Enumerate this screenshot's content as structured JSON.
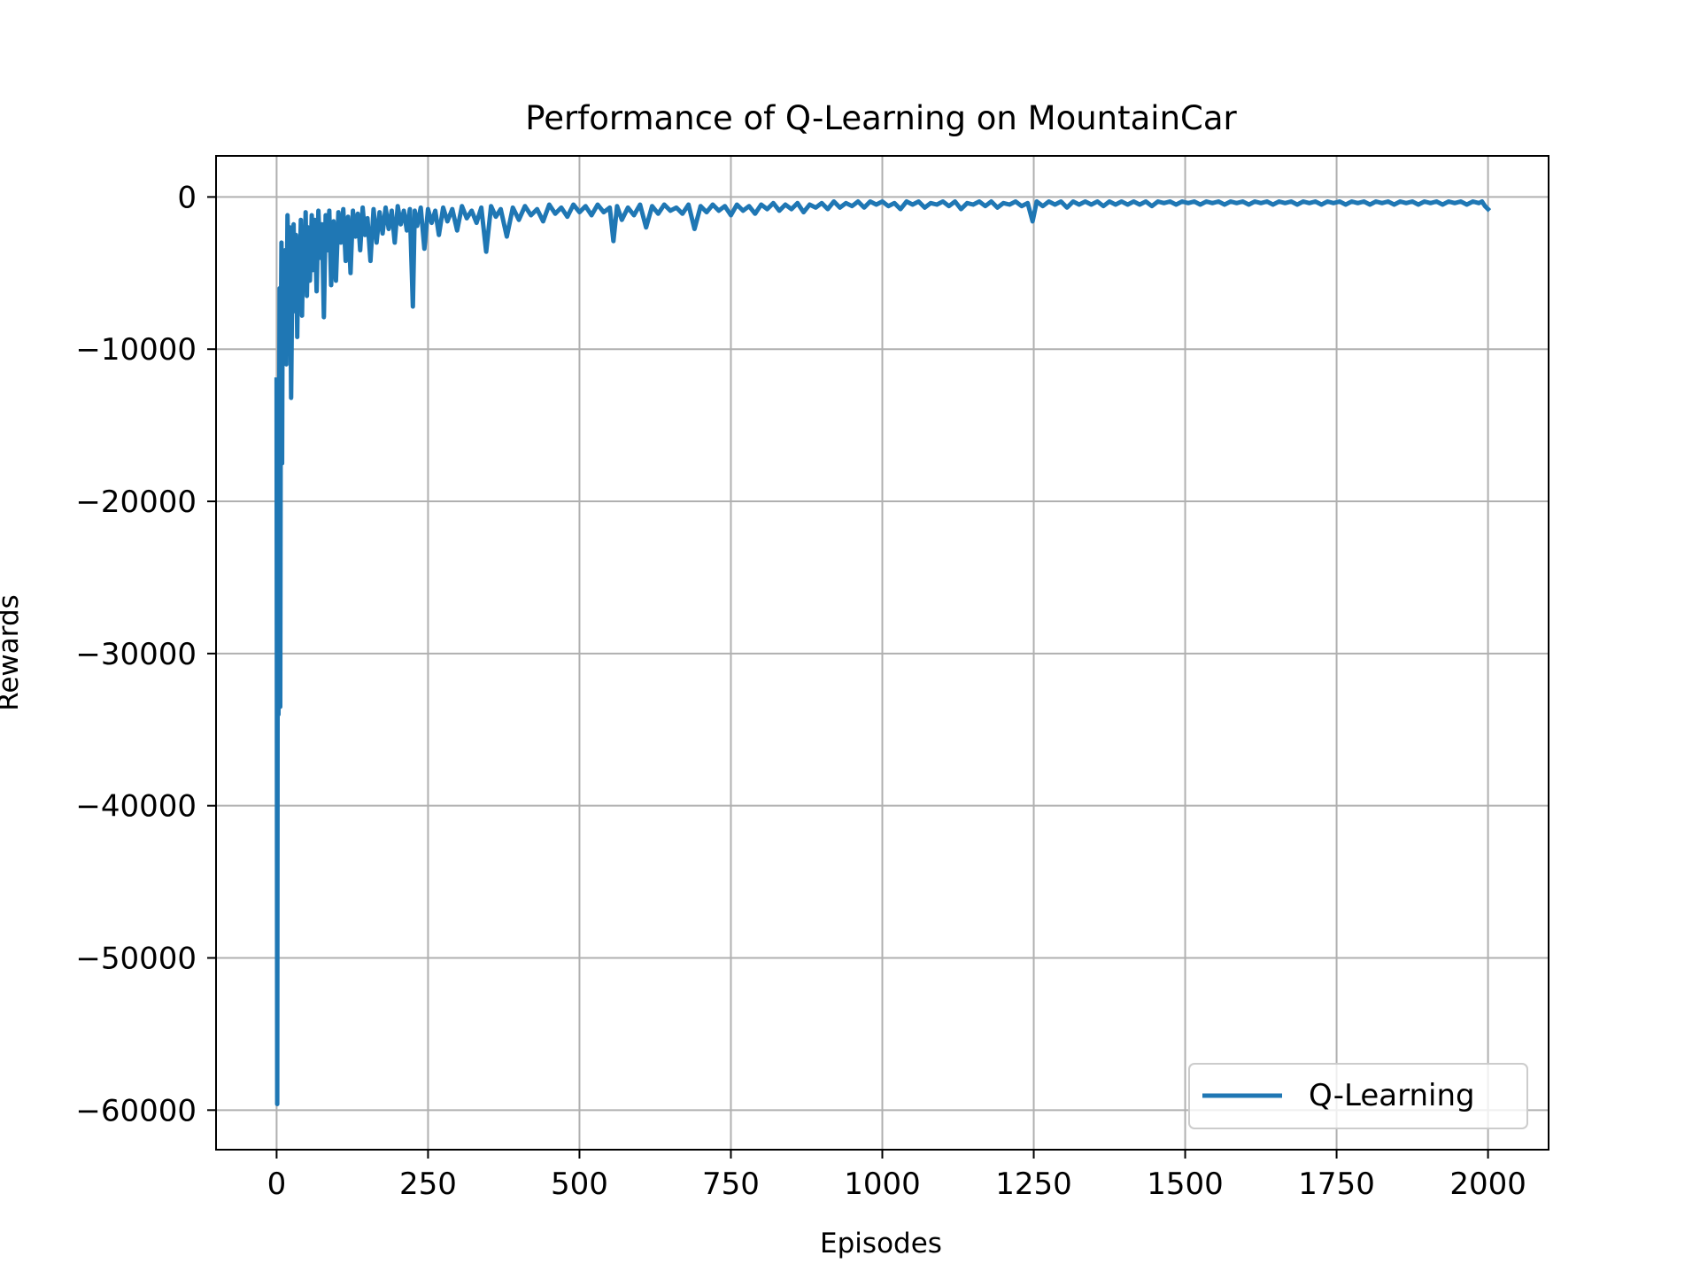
{
  "chart_data": {
    "type": "line",
    "title": "Performance of Q-Learning on MountainCar",
    "xlabel": "Episodes",
    "ylabel": "Rewards",
    "xlim": [
      -100,
      2100
    ],
    "ylim": [
      -62600,
      2700
    ],
    "xticks": [
      0,
      250,
      500,
      750,
      1000,
      1250,
      1500,
      1750,
      2000
    ],
    "yticks": [
      0,
      -10000,
      -20000,
      -30000,
      -40000,
      -50000,
      -60000
    ],
    "xtick_labels": [
      "0",
      "250",
      "500",
      "750",
      "1000",
      "1250",
      "1500",
      "1750",
      "2000"
    ],
    "ytick_labels": [
      "0",
      "−10000",
      "−20000",
      "−30000",
      "−40000",
      "−50000",
      "−60000"
    ],
    "grid": true,
    "legend_position": "bottom-right",
    "series_color": "#1f77b4",
    "series": [
      {
        "name": "Q-Learning",
        "points": [
          [
            0,
            -12000
          ],
          [
            1,
            -59600
          ],
          [
            2,
            -15000
          ],
          [
            3,
            -34000
          ],
          [
            4,
            -20000
          ],
          [
            5,
            -6000
          ],
          [
            6,
            -33500
          ],
          [
            7,
            -9000
          ],
          [
            8,
            -3000
          ],
          [
            9,
            -17500
          ],
          [
            10,
            -4000
          ],
          [
            12,
            -7000
          ],
          [
            14,
            -3500
          ],
          [
            16,
            -11000
          ],
          [
            18,
            -1200
          ],
          [
            20,
            -6000
          ],
          [
            22,
            -2000
          ],
          [
            24,
            -13200
          ],
          [
            26,
            -4000
          ],
          [
            28,
            -1800
          ],
          [
            30,
            -7500
          ],
          [
            32,
            -2500
          ],
          [
            34,
            -9200
          ],
          [
            36,
            -3000
          ],
          [
            38,
            -5000
          ],
          [
            40,
            -1500
          ],
          [
            42,
            -7800
          ],
          [
            44,
            -2600
          ],
          [
            46,
            -4500
          ],
          [
            48,
            -1000
          ],
          [
            50,
            -6500
          ],
          [
            52,
            -2000
          ],
          [
            55,
            -5500
          ],
          [
            58,
            -1200
          ],
          [
            60,
            -4800
          ],
          [
            63,
            -1500
          ],
          [
            66,
            -6200
          ],
          [
            69,
            -900
          ],
          [
            72,
            -4000
          ],
          [
            75,
            -1800
          ],
          [
            78,
            -7900
          ],
          [
            81,
            -1200
          ],
          [
            84,
            -3500
          ],
          [
            87,
            -900
          ],
          [
            90,
            -5800
          ],
          [
            94,
            -1600
          ],
          [
            98,
            -5500
          ],
          [
            102,
            -1000
          ],
          [
            106,
            -3000
          ],
          [
            110,
            -800
          ],
          [
            114,
            -4200
          ],
          [
            118,
            -1300
          ],
          [
            122,
            -5000
          ],
          [
            126,
            -900
          ],
          [
            130,
            -2600
          ],
          [
            134,
            -1100
          ],
          [
            138,
            -3500
          ],
          [
            142,
            -700
          ],
          [
            146,
            -2500
          ],
          [
            150,
            -1400
          ],
          [
            155,
            -4200
          ],
          [
            160,
            -800
          ],
          [
            165,
            -3000
          ],
          [
            170,
            -1000
          ],
          [
            175,
            -2400
          ],
          [
            180,
            -700
          ],
          [
            185,
            -2100
          ],
          [
            190,
            -900
          ],
          [
            195,
            -3000
          ],
          [
            200,
            -600
          ],
          [
            205,
            -1800
          ],
          [
            210,
            -900
          ],
          [
            215,
            -2200
          ],
          [
            220,
            -800
          ],
          [
            225,
            -7200
          ],
          [
            228,
            -900
          ],
          [
            232,
            -1900
          ],
          [
            238,
            -700
          ],
          [
            244,
            -3400
          ],
          [
            250,
            -800
          ],
          [
            256,
            -1700
          ],
          [
            262,
            -900
          ],
          [
            268,
            -2500
          ],
          [
            275,
            -700
          ],
          [
            282,
            -1600
          ],
          [
            290,
            -800
          ],
          [
            298,
            -2200
          ],
          [
            306,
            -600
          ],
          [
            314,
            -1400
          ],
          [
            322,
            -900
          ],
          [
            330,
            -1700
          ],
          [
            338,
            -700
          ],
          [
            346,
            -3600
          ],
          [
            354,
            -600
          ],
          [
            362,
            -1300
          ],
          [
            370,
            -800
          ],
          [
            380,
            -2600
          ],
          [
            390,
            -700
          ],
          [
            400,
            -1500
          ],
          [
            410,
            -600
          ],
          [
            420,
            -1200
          ],
          [
            430,
            -800
          ],
          [
            440,
            -1600
          ],
          [
            450,
            -500
          ],
          [
            460,
            -1100
          ],
          [
            470,
            -700
          ],
          [
            480,
            -1300
          ],
          [
            490,
            -500
          ],
          [
            500,
            -1000
          ],
          [
            510,
            -600
          ],
          [
            520,
            -1200
          ],
          [
            530,
            -500
          ],
          [
            540,
            -1000
          ],
          [
            550,
            -700
          ],
          [
            556,
            -2900
          ],
          [
            562,
            -600
          ],
          [
            570,
            -1500
          ],
          [
            580,
            -700
          ],
          [
            590,
            -1200
          ],
          [
            600,
            -500
          ],
          [
            610,
            -2000
          ],
          [
            620,
            -600
          ],
          [
            630,
            -1100
          ],
          [
            640,
            -500
          ],
          [
            650,
            -900
          ],
          [
            660,
            -700
          ],
          [
            670,
            -1100
          ],
          [
            680,
            -500
          ],
          [
            690,
            -2100
          ],
          [
            700,
            -600
          ],
          [
            710,
            -1000
          ],
          [
            720,
            -500
          ],
          [
            730,
            -900
          ],
          [
            740,
            -600
          ],
          [
            750,
            -1200
          ],
          [
            760,
            -500
          ],
          [
            770,
            -900
          ],
          [
            780,
            -600
          ],
          [
            790,
            -1100
          ],
          [
            800,
            -500
          ],
          [
            810,
            -800
          ],
          [
            820,
            -400
          ],
          [
            830,
            -900
          ],
          [
            840,
            -500
          ],
          [
            850,
            -800
          ],
          [
            860,
            -400
          ],
          [
            870,
            -1000
          ],
          [
            880,
            -500
          ],
          [
            890,
            -700
          ],
          [
            900,
            -400
          ],
          [
            910,
            -800
          ],
          [
            920,
            -300
          ],
          [
            930,
            -700
          ],
          [
            940,
            -400
          ],
          [
            950,
            -600
          ],
          [
            960,
            -300
          ],
          [
            970,
            -700
          ],
          [
            980,
            -300
          ],
          [
            990,
            -500
          ],
          [
            1000,
            -300
          ],
          [
            1010,
            -600
          ],
          [
            1020,
            -400
          ],
          [
            1030,
            -800
          ],
          [
            1040,
            -300
          ],
          [
            1050,
            -500
          ],
          [
            1060,
            -300
          ],
          [
            1070,
            -700
          ],
          [
            1080,
            -400
          ],
          [
            1090,
            -500
          ],
          [
            1100,
            -300
          ],
          [
            1110,
            -600
          ],
          [
            1120,
            -300
          ],
          [
            1130,
            -800
          ],
          [
            1140,
            -400
          ],
          [
            1150,
            -500
          ],
          [
            1160,
            -300
          ],
          [
            1170,
            -600
          ],
          [
            1180,
            -300
          ],
          [
            1190,
            -700
          ],
          [
            1200,
            -400
          ],
          [
            1210,
            -500
          ],
          [
            1220,
            -300
          ],
          [
            1230,
            -600
          ],
          [
            1240,
            -400
          ],
          [
            1248,
            -1600
          ],
          [
            1255,
            -300
          ],
          [
            1265,
            -600
          ],
          [
            1275,
            -300
          ],
          [
            1285,
            -500
          ],
          [
            1295,
            -300
          ],
          [
            1305,
            -700
          ],
          [
            1315,
            -300
          ],
          [
            1325,
            -500
          ],
          [
            1335,
            -300
          ],
          [
            1345,
            -500
          ],
          [
            1355,
            -300
          ],
          [
            1365,
            -600
          ],
          [
            1375,
            -300
          ],
          [
            1385,
            -500
          ],
          [
            1395,
            -300
          ],
          [
            1405,
            -500
          ],
          [
            1415,
            -300
          ],
          [
            1425,
            -500
          ],
          [
            1435,
            -300
          ],
          [
            1445,
            -600
          ],
          [
            1455,
            -300
          ],
          [
            1465,
            -400
          ],
          [
            1475,
            -300
          ],
          [
            1485,
            -500
          ],
          [
            1495,
            -300
          ],
          [
            1505,
            -400
          ],
          [
            1515,
            -300
          ],
          [
            1525,
            -500
          ],
          [
            1535,
            -300
          ],
          [
            1545,
            -400
          ],
          [
            1555,
            -300
          ],
          [
            1565,
            -500
          ],
          [
            1575,
            -300
          ],
          [
            1585,
            -400
          ],
          [
            1595,
            -300
          ],
          [
            1605,
            -500
          ],
          [
            1615,
            -300
          ],
          [
            1625,
            -400
          ],
          [
            1635,
            -300
          ],
          [
            1645,
            -500
          ],
          [
            1655,
            -300
          ],
          [
            1665,
            -400
          ],
          [
            1675,
            -300
          ],
          [
            1685,
            -500
          ],
          [
            1695,
            -300
          ],
          [
            1705,
            -400
          ],
          [
            1715,
            -300
          ],
          [
            1725,
            -500
          ],
          [
            1735,
            -300
          ],
          [
            1745,
            -400
          ],
          [
            1755,
            -300
          ],
          [
            1765,
            -500
          ],
          [
            1775,
            -300
          ],
          [
            1785,
            -400
          ],
          [
            1795,
            -300
          ],
          [
            1805,
            -500
          ],
          [
            1815,
            -300
          ],
          [
            1825,
            -400
          ],
          [
            1835,
            -300
          ],
          [
            1845,
            -500
          ],
          [
            1855,
            -300
          ],
          [
            1865,
            -400
          ],
          [
            1875,
            -300
          ],
          [
            1885,
            -500
          ],
          [
            1895,
            -300
          ],
          [
            1905,
            -400
          ],
          [
            1915,
            -300
          ],
          [
            1925,
            -500
          ],
          [
            1935,
            -300
          ],
          [
            1945,
            -400
          ],
          [
            1955,
            -300
          ],
          [
            1965,
            -500
          ],
          [
            1975,
            -300
          ],
          [
            1985,
            -400
          ],
          [
            1990,
            -300
          ],
          [
            1995,
            -600
          ],
          [
            2000,
            -800
          ]
        ]
      }
    ]
  }
}
